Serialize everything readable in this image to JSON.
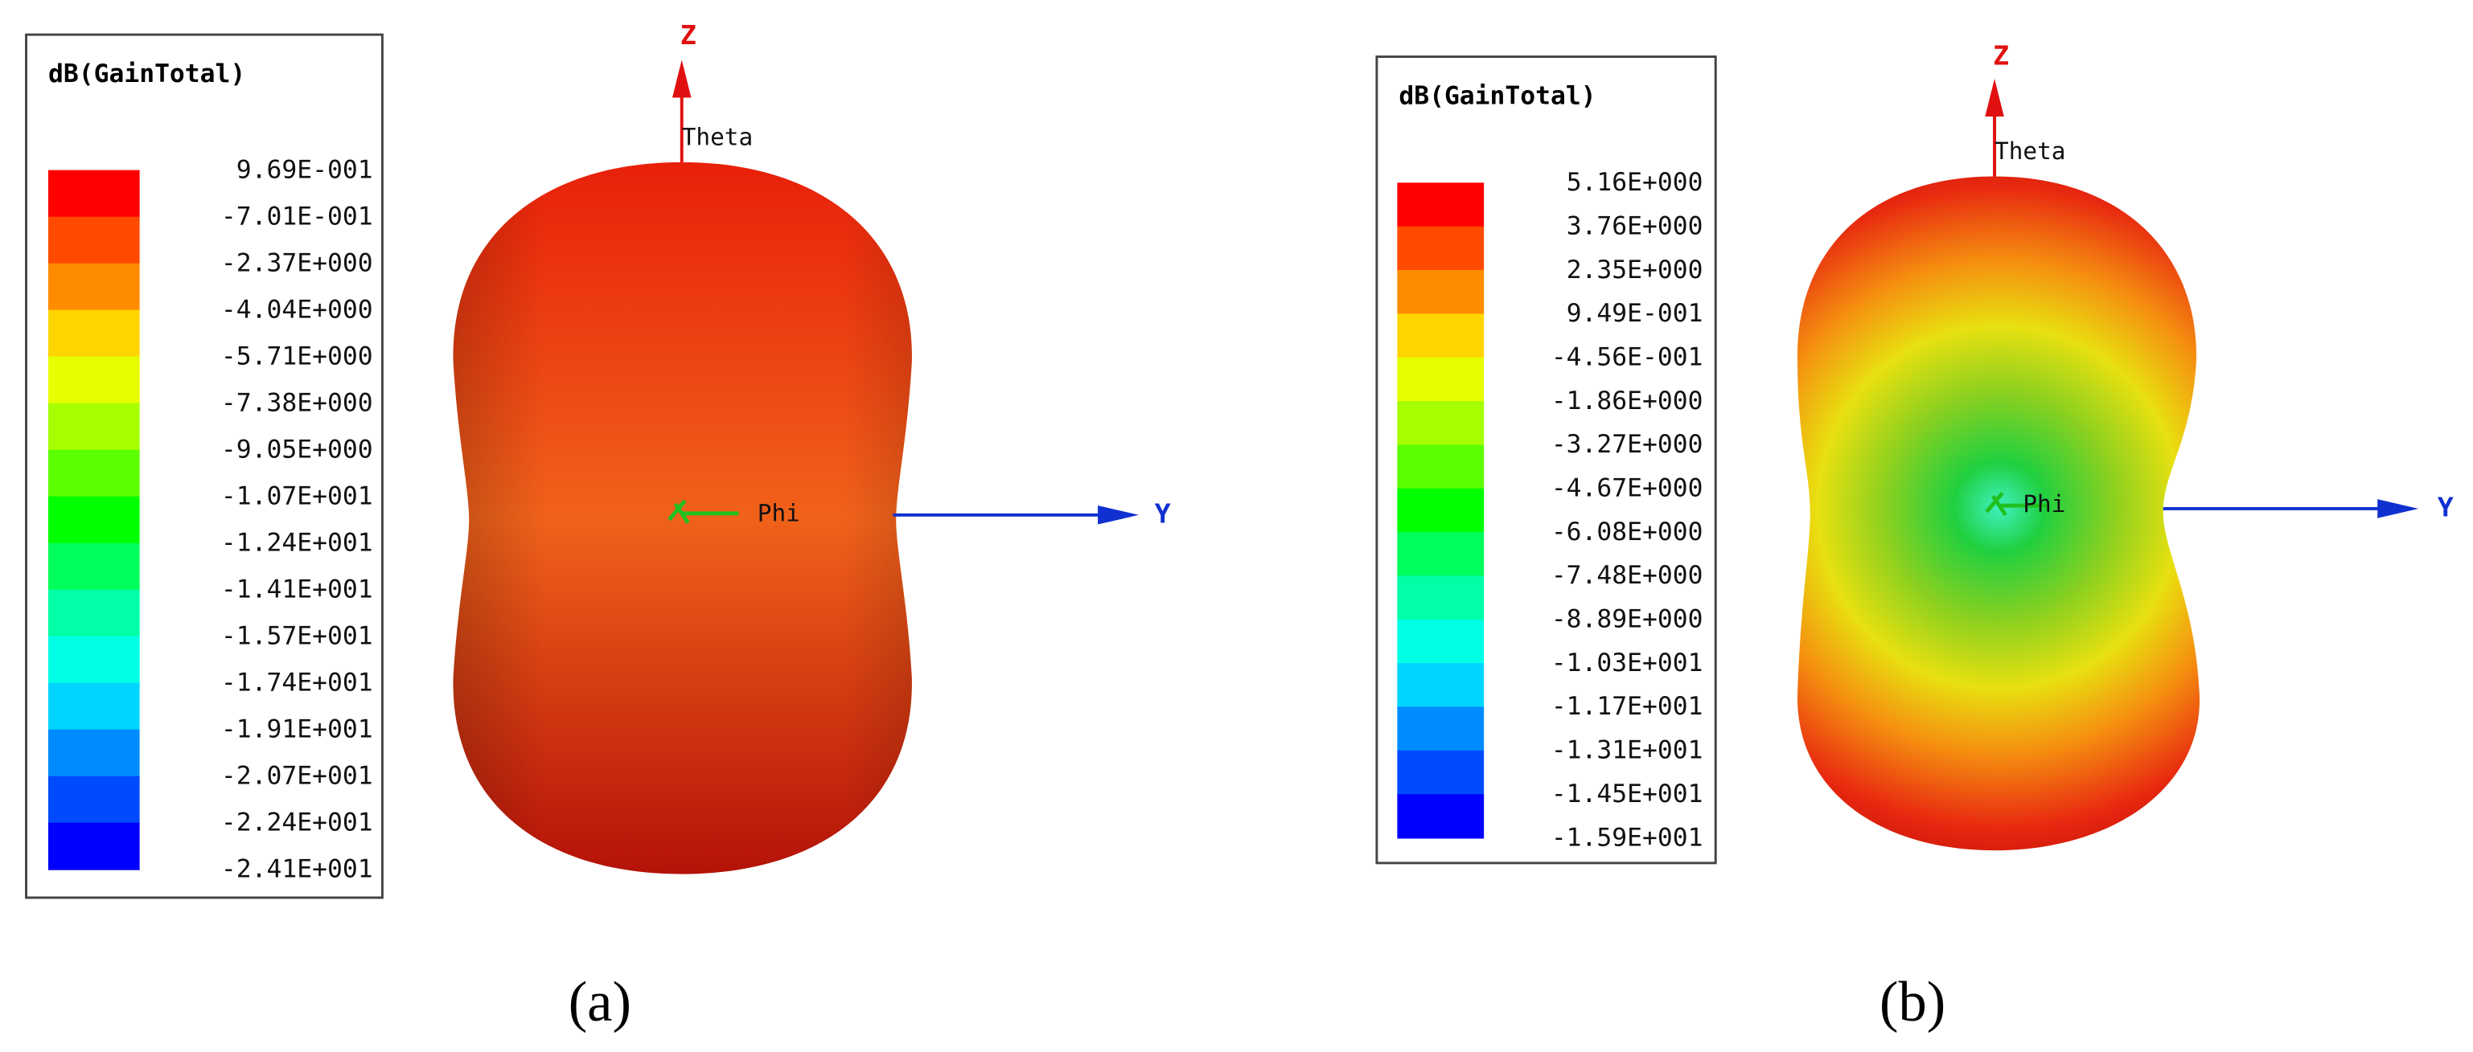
{
  "panels": [
    {
      "legend_title": "dB(GainTotal)",
      "legend_labels": [
        "9.69E-001",
        "-7.01E-001",
        "-2.37E+000",
        "-4.04E+000",
        "-5.71E+000",
        "-7.38E+000",
        "-9.05E+000",
        "-1.07E+001",
        "-1.24E+001",
        "-1.41E+001",
        "-1.57E+001",
        "-1.74E+001",
        "-1.91E+001",
        "-2.07E+001",
        "-2.24E+001",
        "-2.41E+001"
      ],
      "axis_z": "Z",
      "axis_y": "Y",
      "theta": "Theta",
      "phi": "Phi",
      "caption": "(a)"
    },
    {
      "legend_title": "dB(GainTotal)",
      "legend_labels": [
        "5.16E+000",
        "3.76E+000",
        "2.35E+000",
        "9.49E-001",
        "-4.56E-001",
        "-1.86E+000",
        "-3.27E+000",
        "-4.67E+000",
        "-6.08E+000",
        "-7.48E+000",
        "-8.89E+000",
        "-1.03E+001",
        "-1.17E+001",
        "-1.31E+001",
        "-1.45E+001",
        "-1.59E+001"
      ],
      "axis_z": "Z",
      "axis_y": "Y",
      "theta": "Theta",
      "phi": "Phi",
      "caption": "(b)"
    }
  ]
}
